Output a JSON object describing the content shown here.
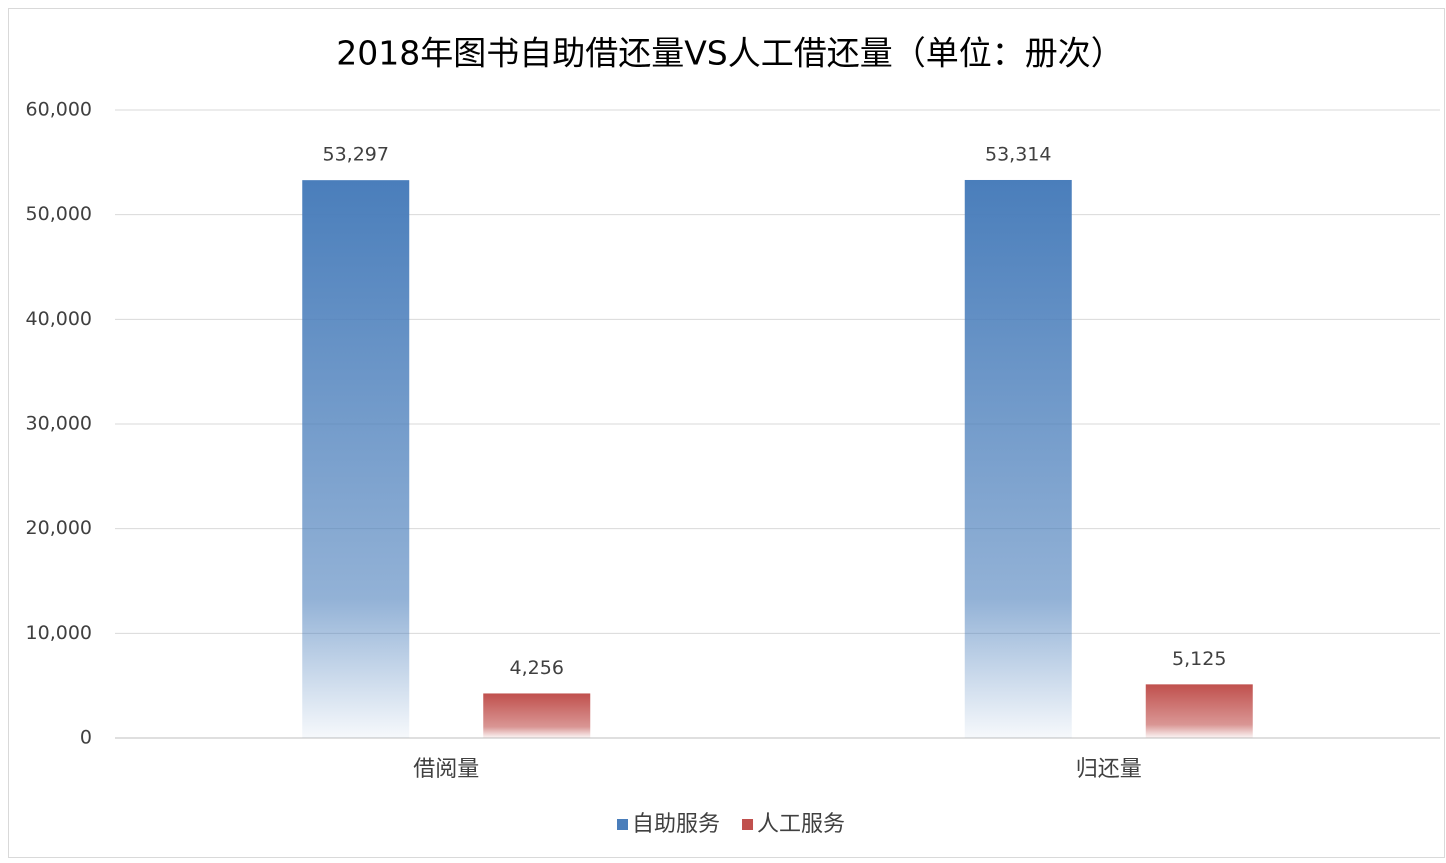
{
  "chart_data": {
    "type": "bar",
    "title": "2018年图书自助借还量VS人工借还量（单位：册次）",
    "categories": [
      "借阅量",
      "归还量"
    ],
    "series": [
      {
        "name": "自助服务",
        "color": "#4a7ebb",
        "values": [
          53297,
          53314
        ],
        "value_labels": [
          "53,297",
          "53,314"
        ]
      },
      {
        "name": "人工服务",
        "color": "#c0504d",
        "values": [
          4256,
          5125
        ],
        "value_labels": [
          "4,256",
          "5,125"
        ]
      }
    ],
    "ylim": [
      0,
      60000
    ],
    "yticks": [
      0,
      {
        "value": 10000,
        "label": "10,000"
      },
      {
        "value": 20000,
        "label": "20,000"
      },
      {
        "value": 30000,
        "label": "30,000"
      },
      {
        "value": 40000,
        "label": "40,000"
      },
      {
        "value": 50000,
        "label": "50,000"
      },
      {
        "value": 60000,
        "label": "60,000"
      }
    ],
    "grid": true,
    "legend": "bottom"
  }
}
